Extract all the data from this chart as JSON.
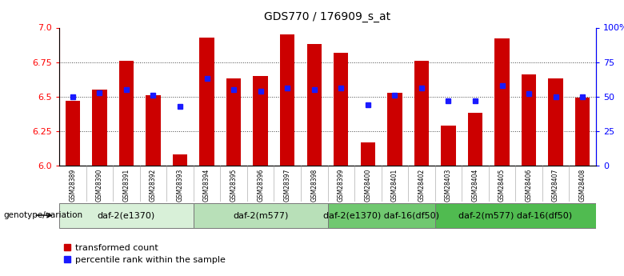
{
  "title": "GDS770 / 176909_s_at",
  "samples": [
    "GSM28389",
    "GSM28390",
    "GSM28391",
    "GSM28392",
    "GSM28393",
    "GSM28394",
    "GSM28395",
    "GSM28396",
    "GSM28397",
    "GSM28398",
    "GSM28399",
    "GSM28400",
    "GSM28401",
    "GSM28402",
    "GSM28403",
    "GSM28404",
    "GSM28405",
    "GSM28406",
    "GSM28407",
    "GSM28408"
  ],
  "transformed_count": [
    6.47,
    6.55,
    6.76,
    6.51,
    6.08,
    6.93,
    6.63,
    6.65,
    6.95,
    6.88,
    6.82,
    6.17,
    6.53,
    6.76,
    6.29,
    6.38,
    6.92,
    6.66,
    6.63,
    6.49
  ],
  "percentile_rank": [
    50,
    53,
    55,
    51,
    43,
    63,
    55,
    54,
    56,
    55,
    56,
    44,
    51,
    56,
    47,
    47,
    58,
    52,
    50,
    50
  ],
  "ylim_left": [
    6.0,
    7.0
  ],
  "ylim_right": [
    0,
    100
  ],
  "yticks_left": [
    6.0,
    6.25,
    6.5,
    6.75,
    7.0
  ],
  "yticks_right": [
    0,
    25,
    50,
    75,
    100
  ],
  "ytick_labels_right": [
    "0",
    "25",
    "50",
    "75",
    "100%"
  ],
  "groups": [
    {
      "label": "daf-2(e1370)",
      "start": 0,
      "end": 4,
      "color": "#d8f0d8"
    },
    {
      "label": "daf-2(m577)",
      "start": 5,
      "end": 9,
      "color": "#b8e0b8"
    },
    {
      "label": "daf-2(e1370) daf-16(df50)",
      "start": 10,
      "end": 13,
      "color": "#70c870"
    },
    {
      "label": "daf-2(m577) daf-16(df50)",
      "start": 14,
      "end": 19,
      "color": "#50bb50"
    }
  ],
  "bar_color": "#cc0000",
  "dot_color": "#1a1aff",
  "bar_bottom": 6.0,
  "bar_width": 0.55,
  "grid_color": "#444444",
  "sample_label_bg": "#cccccc",
  "genotype_label": "genotype/variation",
  "legend_red": "transformed count",
  "legend_blue": "percentile rank within the sample",
  "title_fontsize": 10,
  "axis_fontsize": 8,
  "sample_fontsize": 5.5,
  "group_fontsize": 8
}
